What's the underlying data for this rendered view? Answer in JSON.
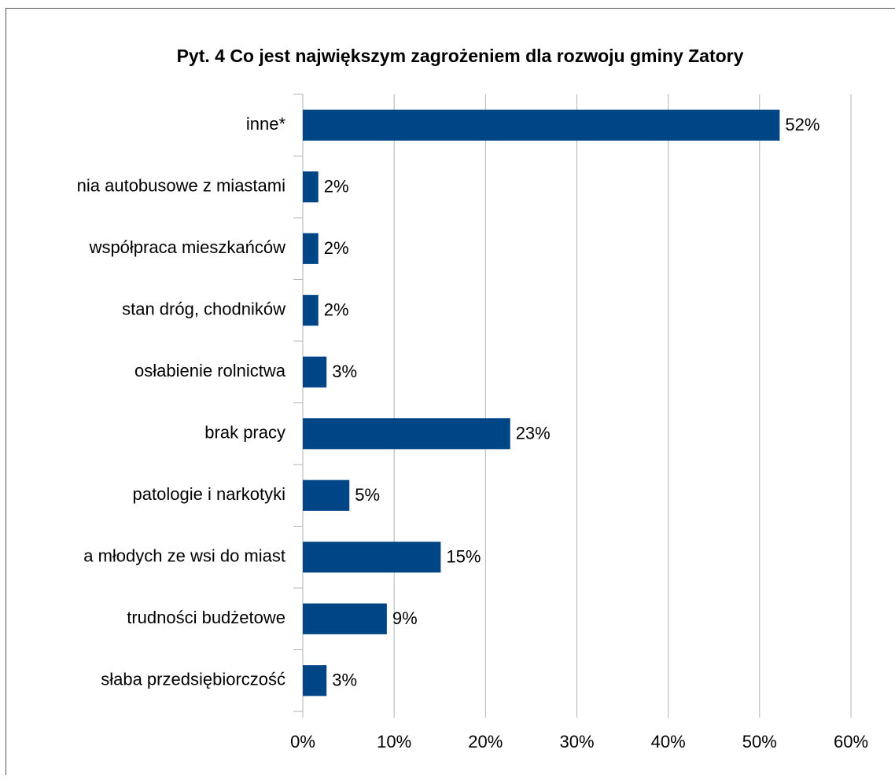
{
  "chart_data": {
    "type": "bar",
    "orientation": "horizontal",
    "title": "Pyt. 4 Co jest największym zagrożeniem dla rozwoju gminy Zatory",
    "categories": [
      "inne*",
      "nia autobusowe z miastami",
      "współpraca mieszkańców",
      "stan dróg, chodników",
      "osłabienie rolnictwa",
      "brak pracy",
      "patologie i narkotyki",
      "a młodych ze wsi do miast",
      "trudności budżetowe",
      "słaba przedsiębiorczość"
    ],
    "values": [
      52.2,
      1.7,
      1.7,
      1.7,
      2.6,
      22.7,
      5.1,
      15.1,
      9.2,
      2.6
    ],
    "value_labels": [
      "52%",
      "2%",
      "2%",
      "2%",
      "3%",
      "23%",
      "5%",
      "15%",
      "9%",
      "3%"
    ],
    "color": "#004586",
    "xlim": [
      0,
      60
    ],
    "xticks": [
      {
        "value": 0,
        "label": "0%"
      },
      {
        "value": 10,
        "label": "10%"
      },
      {
        "value": 20,
        "label": "20%"
      },
      {
        "value": 30,
        "label": "30%"
      },
      {
        "value": 40,
        "label": "40%"
      },
      {
        "value": 50,
        "label": "50%"
      },
      {
        "value": 60,
        "label": "60%"
      }
    ],
    "grid": true
  }
}
